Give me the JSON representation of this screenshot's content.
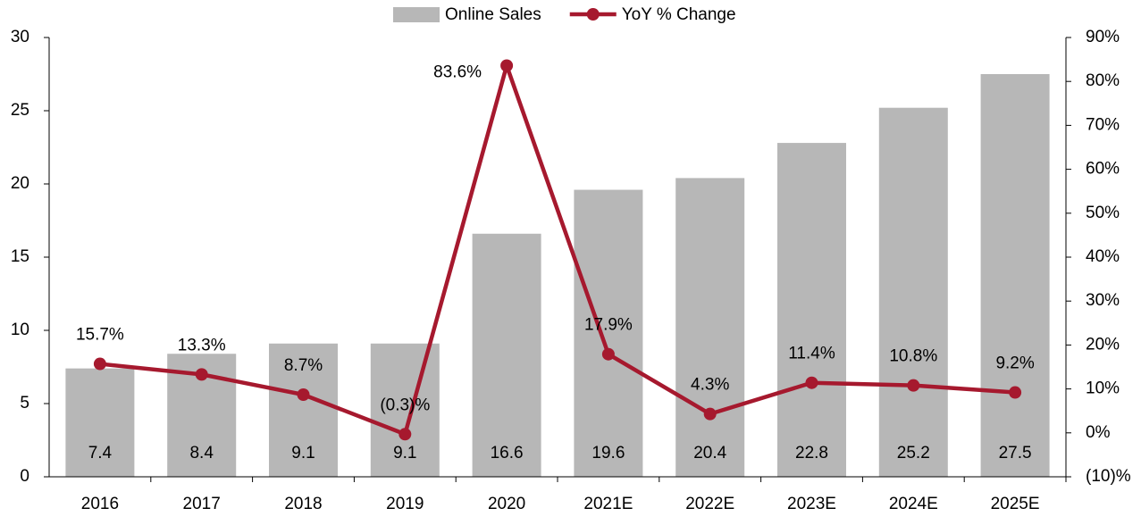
{
  "chart_data": {
    "type": "bar",
    "categories": [
      "2016",
      "2017",
      "2018",
      "2019",
      "2020",
      "2021E",
      "2022E",
      "2023E",
      "2024E",
      "2025E"
    ],
    "series": [
      {
        "name": "Online Sales",
        "type": "bar",
        "color": "#b7b7b7",
        "values": [
          7.4,
          8.4,
          9.1,
          9.1,
          16.6,
          19.6,
          20.4,
          22.8,
          25.2,
          27.5
        ]
      },
      {
        "name": "YoY % Change",
        "type": "line",
        "axis": "y2",
        "color": "#a6192e",
        "values": [
          15.7,
          13.3,
          8.7,
          -0.3,
          83.6,
          17.9,
          4.3,
          11.4,
          10.8,
          9.2
        ],
        "value_labels": [
          "15.7%",
          "13.3%",
          "8.7%",
          "(0.3)%",
          "83.6%",
          "17.9%",
          "4.3%",
          "11.4%",
          "10.8%",
          "9.2%"
        ]
      }
    ],
    "ylim": [
      0,
      30
    ],
    "yticks": [
      0,
      5,
      10,
      15,
      20,
      25,
      30
    ],
    "y2lim": [
      -10,
      90
    ],
    "y2ticks": [
      {
        "value": -10,
        "label": "(10)%"
      },
      {
        "value": 0,
        "label": "0%"
      },
      {
        "value": 10,
        "label": "10%"
      },
      {
        "value": 20,
        "label": "20%"
      },
      {
        "value": 30,
        "label": "30%"
      },
      {
        "value": 40,
        "label": "40%"
      },
      {
        "value": 50,
        "label": "50%"
      },
      {
        "value": 60,
        "label": "60%"
      },
      {
        "value": 70,
        "label": "70%"
      },
      {
        "value": 80,
        "label": "80%"
      },
      {
        "value": 90,
        "label": "90%"
      }
    ],
    "legend": "top"
  }
}
